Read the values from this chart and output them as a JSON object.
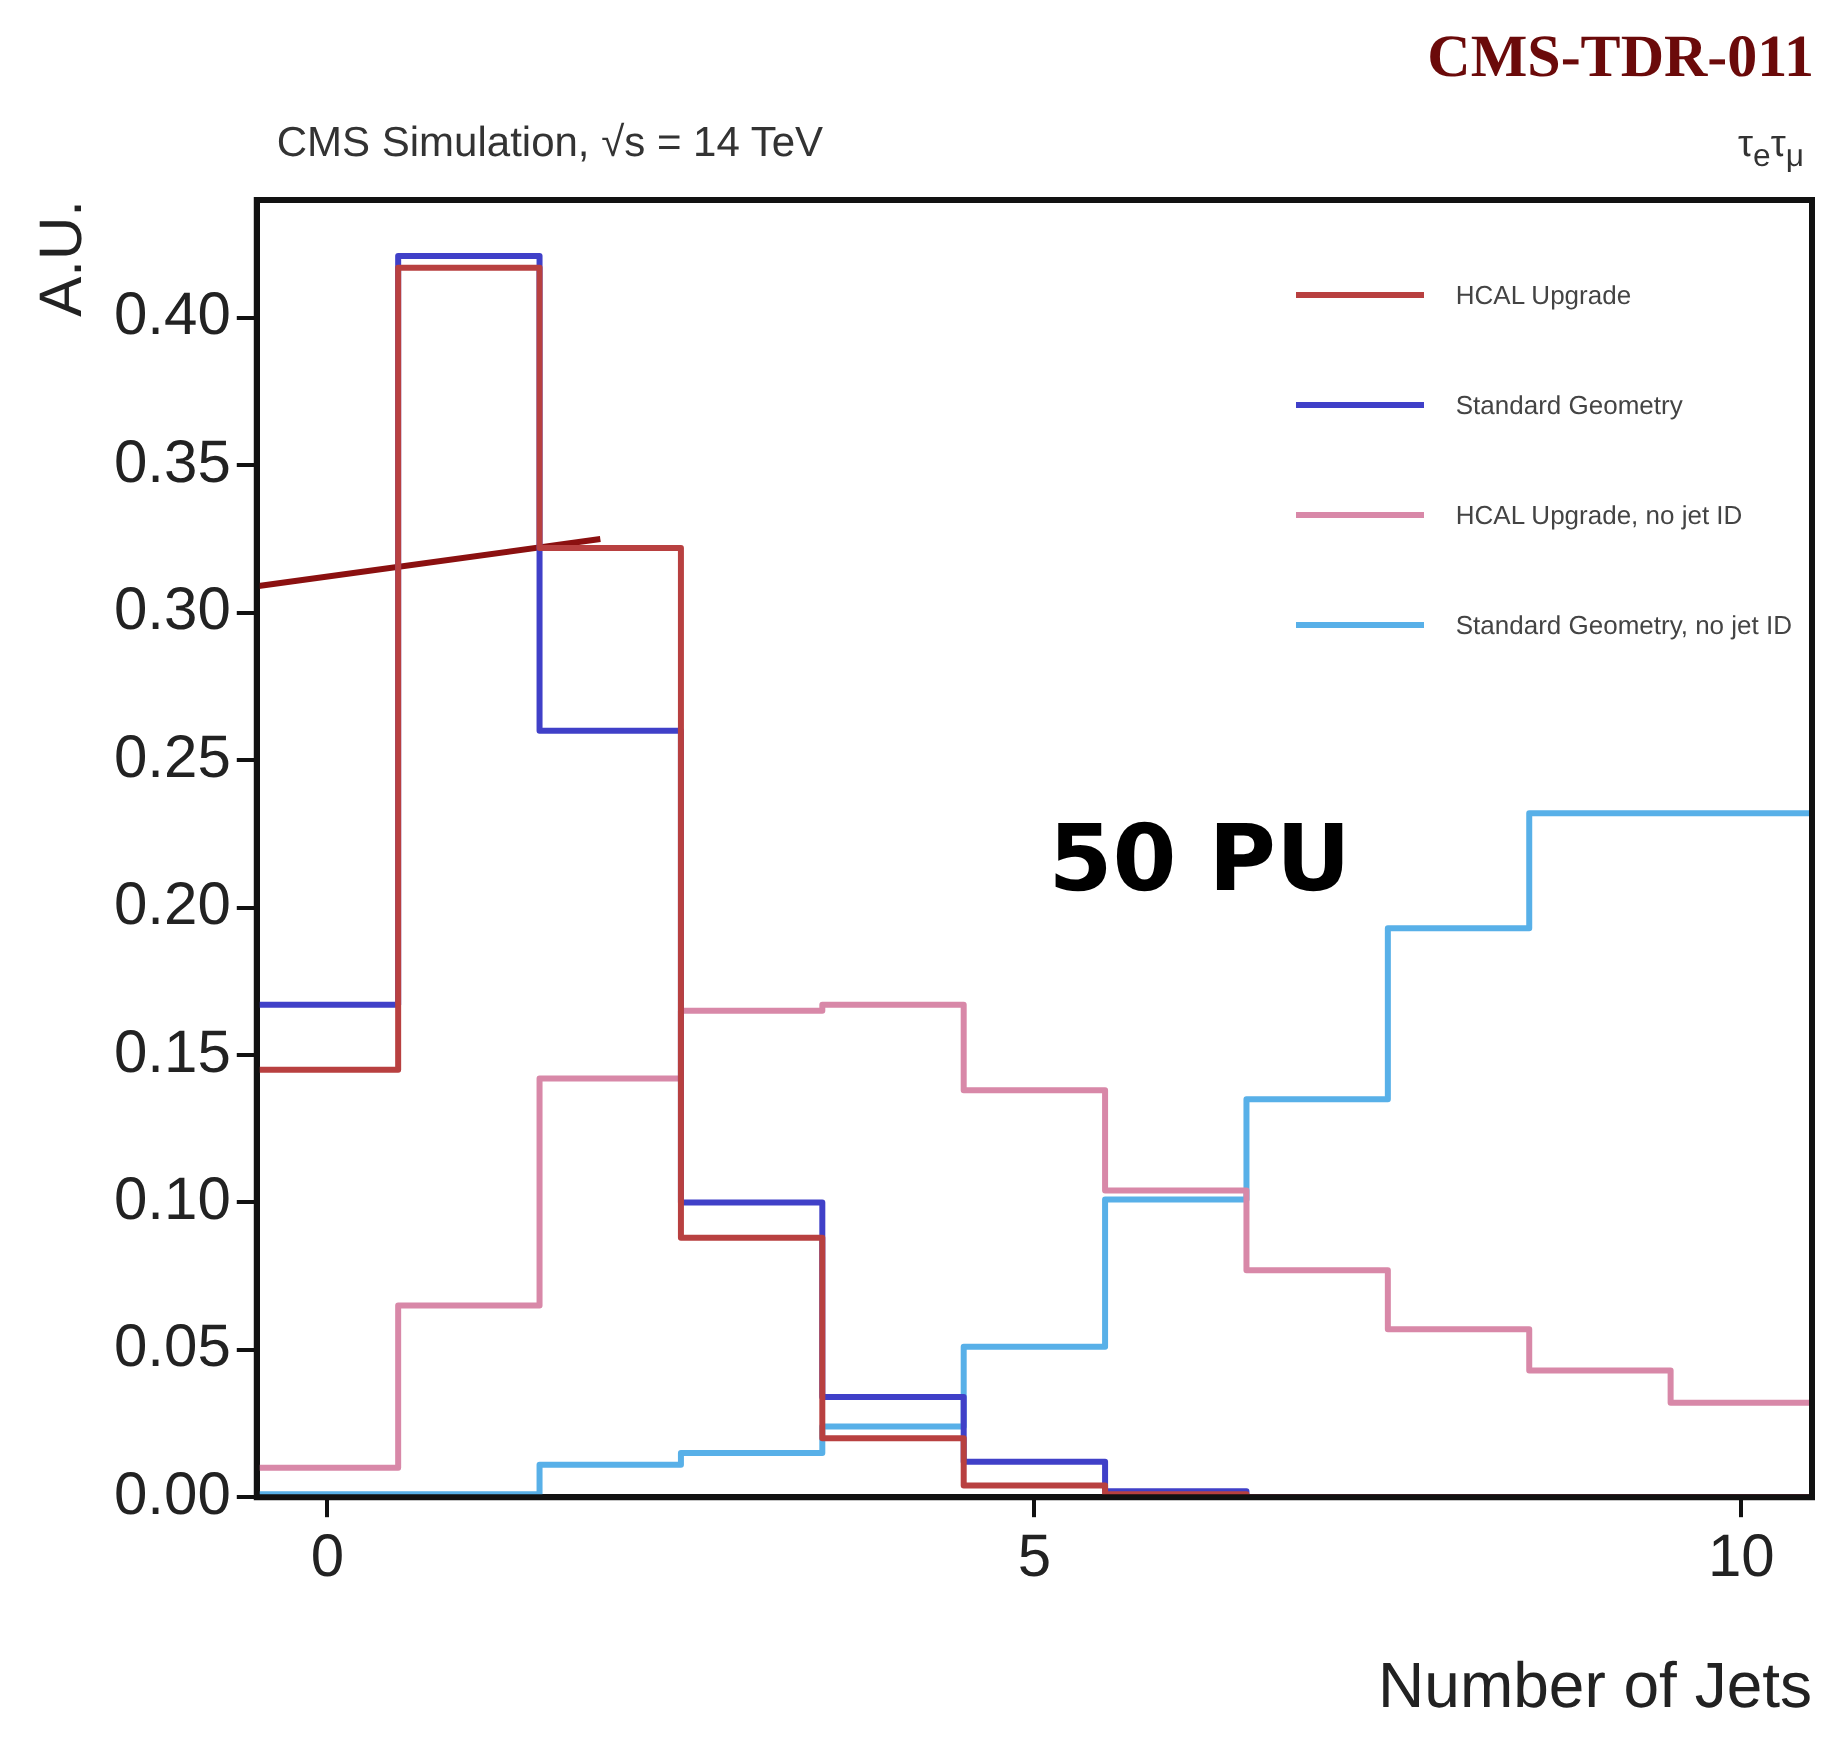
{
  "chart_data": {
    "type": "histogram",
    "title": "CMS Simulation, √s = 14 TeV",
    "xlabel": "Number of Jets",
    "ylabel": "A.U.",
    "annotations": [
      "CMS-TDR-011",
      "τ$_{e}$τ$_{μ}$",
      "50 PU"
    ],
    "bins": [
      -0.5,
      0.5,
      1.5,
      2.5,
      3.5,
      4.5,
      5.5,
      6.5,
      7.5,
      8.5,
      9.5,
      10.5
    ],
    "series": [
      {
        "name": "HCAL Upgrade",
        "color": "#b84040",
        "values": [
          0.145,
          0.417,
          0.322,
          0.088,
          0.02,
          0.004,
          0.001,
          0,
          0,
          0,
          0
        ]
      },
      {
        "name": "Standard Geometry",
        "color": "#4040c8",
        "values": [
          0.167,
          0.421,
          0.26,
          0.1,
          0.034,
          0.012,
          0.002,
          0,
          0,
          0,
          0
        ]
      },
      {
        "name": "HCAL Upgrade, no jet ID",
        "color": "#d888a8",
        "values": [
          0.01,
          0.065,
          0.142,
          0.165,
          0.167,
          0.138,
          0.104,
          0.077,
          0.057,
          0.043,
          0.032
        ]
      },
      {
        "name": "Standard Geometry, no jet ID",
        "color": "#58b0e8",
        "values": [
          0.001,
          0.001,
          0.011,
          0.015,
          0.024,
          0.051,
          0.101,
          0.135,
          0.193,
          0.232,
          0.232
        ]
      },
      {
        "type": "line",
        "color": "#8b1010",
        "x": [
          -0.5,
          1.93
        ],
        "values": [
          0.309,
          0.325
        ]
      }
    ],
    "xlim": [
      -0.5,
      10.5
    ],
    "xticks": [
      0,
      5,
      10
    ],
    "ylim": [
      0,
      0.44
    ],
    "yticks": [
      {
        "value": 0,
        "label": "0.00"
      },
      {
        "value": 0.05,
        "label": "0.05"
      },
      {
        "value": 0.1,
        "label": "0.10"
      },
      {
        "value": 0.15,
        "label": "0.15"
      },
      {
        "value": 0.2,
        "label": "0.20"
      },
      {
        "value": 0.25,
        "label": "0.25"
      },
      {
        "value": 0.3,
        "label": "0.30"
      },
      {
        "value": 0.35,
        "label": "0.35"
      },
      {
        "value": 0.4,
        "label": "0.40"
      }
    ],
    "grid": false,
    "legend": "top right"
  }
}
